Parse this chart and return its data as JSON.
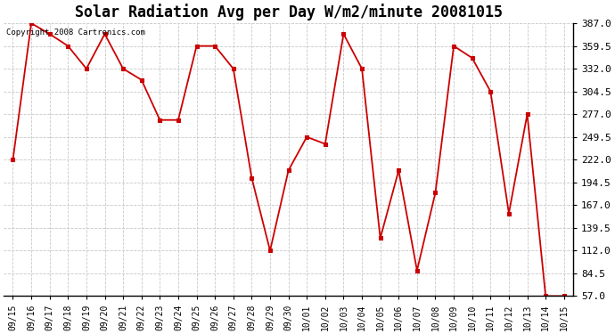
{
  "title": "Solar Radiation Avg per Day W/m2/minute 20081015",
  "copyright_text": "Copyright 2008 Cartronics.com",
  "labels": [
    "09/15",
    "09/16",
    "09/17",
    "09/18",
    "09/19",
    "09/20",
    "09/21",
    "09/22",
    "09/23",
    "09/24",
    "09/25",
    "09/26",
    "09/27",
    "09/28",
    "09/29",
    "09/30",
    "10/01",
    "10/02",
    "10/03",
    "10/04",
    "10/05",
    "10/06",
    "10/07",
    "10/08",
    "10/09",
    "10/10",
    "10/11",
    "10/12",
    "10/13",
    "10/14",
    "10/15"
  ],
  "values": [
    222.0,
    387.0,
    374.0,
    359.5,
    332.0,
    374.0,
    332.0,
    318.5,
    270.0,
    270.0,
    359.5,
    359.5,
    332.0,
    200.0,
    112.0,
    209.0,
    249.5,
    241.0,
    374.0,
    332.0,
    127.0,
    209.0,
    88.0,
    182.0,
    359.5,
    345.0,
    304.5,
    157.0,
    277.0,
    57.0,
    57.0
  ],
  "line_color": "#cc0000",
  "marker_color": "#cc0000",
  "bg_color": "#ffffff",
  "grid_color": "#c8c8c8",
  "yticks": [
    57.0,
    84.5,
    112.0,
    139.5,
    167.0,
    194.5,
    222.0,
    249.5,
    277.0,
    304.5,
    332.0,
    359.5,
    387.0
  ],
  "ylim": [
    57.0,
    387.0
  ],
  "title_fontsize": 12,
  "copyright_fontsize": 6.5,
  "tick_fontsize": 7,
  "ytick_fontsize": 8
}
